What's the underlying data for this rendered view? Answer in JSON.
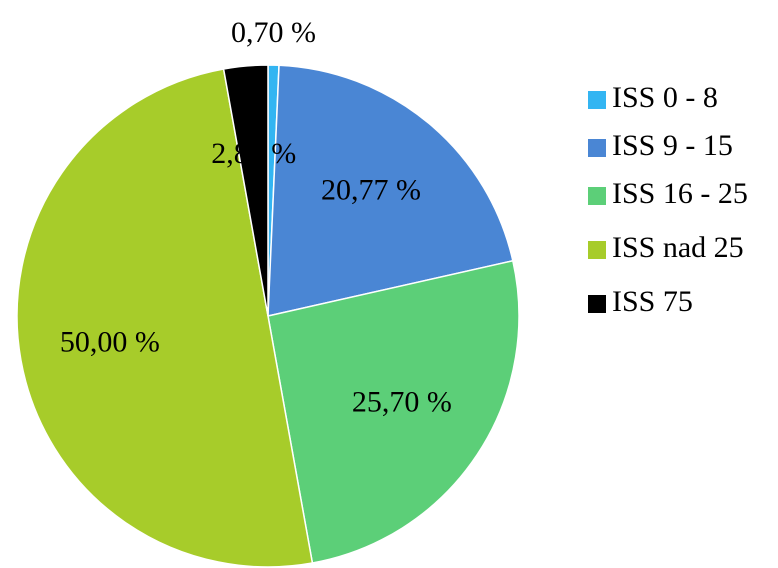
{
  "chart_data": {
    "type": "pie",
    "categories": [
      "ISS 0 - 8",
      "ISS 9 - 15",
      "ISS 16 - 25",
      "ISS nad 25",
      "ISS 75"
    ],
    "values": [
      0.7,
      20.77,
      25.7,
      50.0,
      2.83
    ],
    "value_labels": [
      "0,70 %",
      "20,77 %",
      "25,70 %",
      "50,00 %",
      "2,83 %"
    ],
    "colors": [
      "#33b5f2",
      "#4a86d4",
      "#5ccf78",
      "#a7cc2a",
      "#000000"
    ],
    "legend": "right"
  }
}
